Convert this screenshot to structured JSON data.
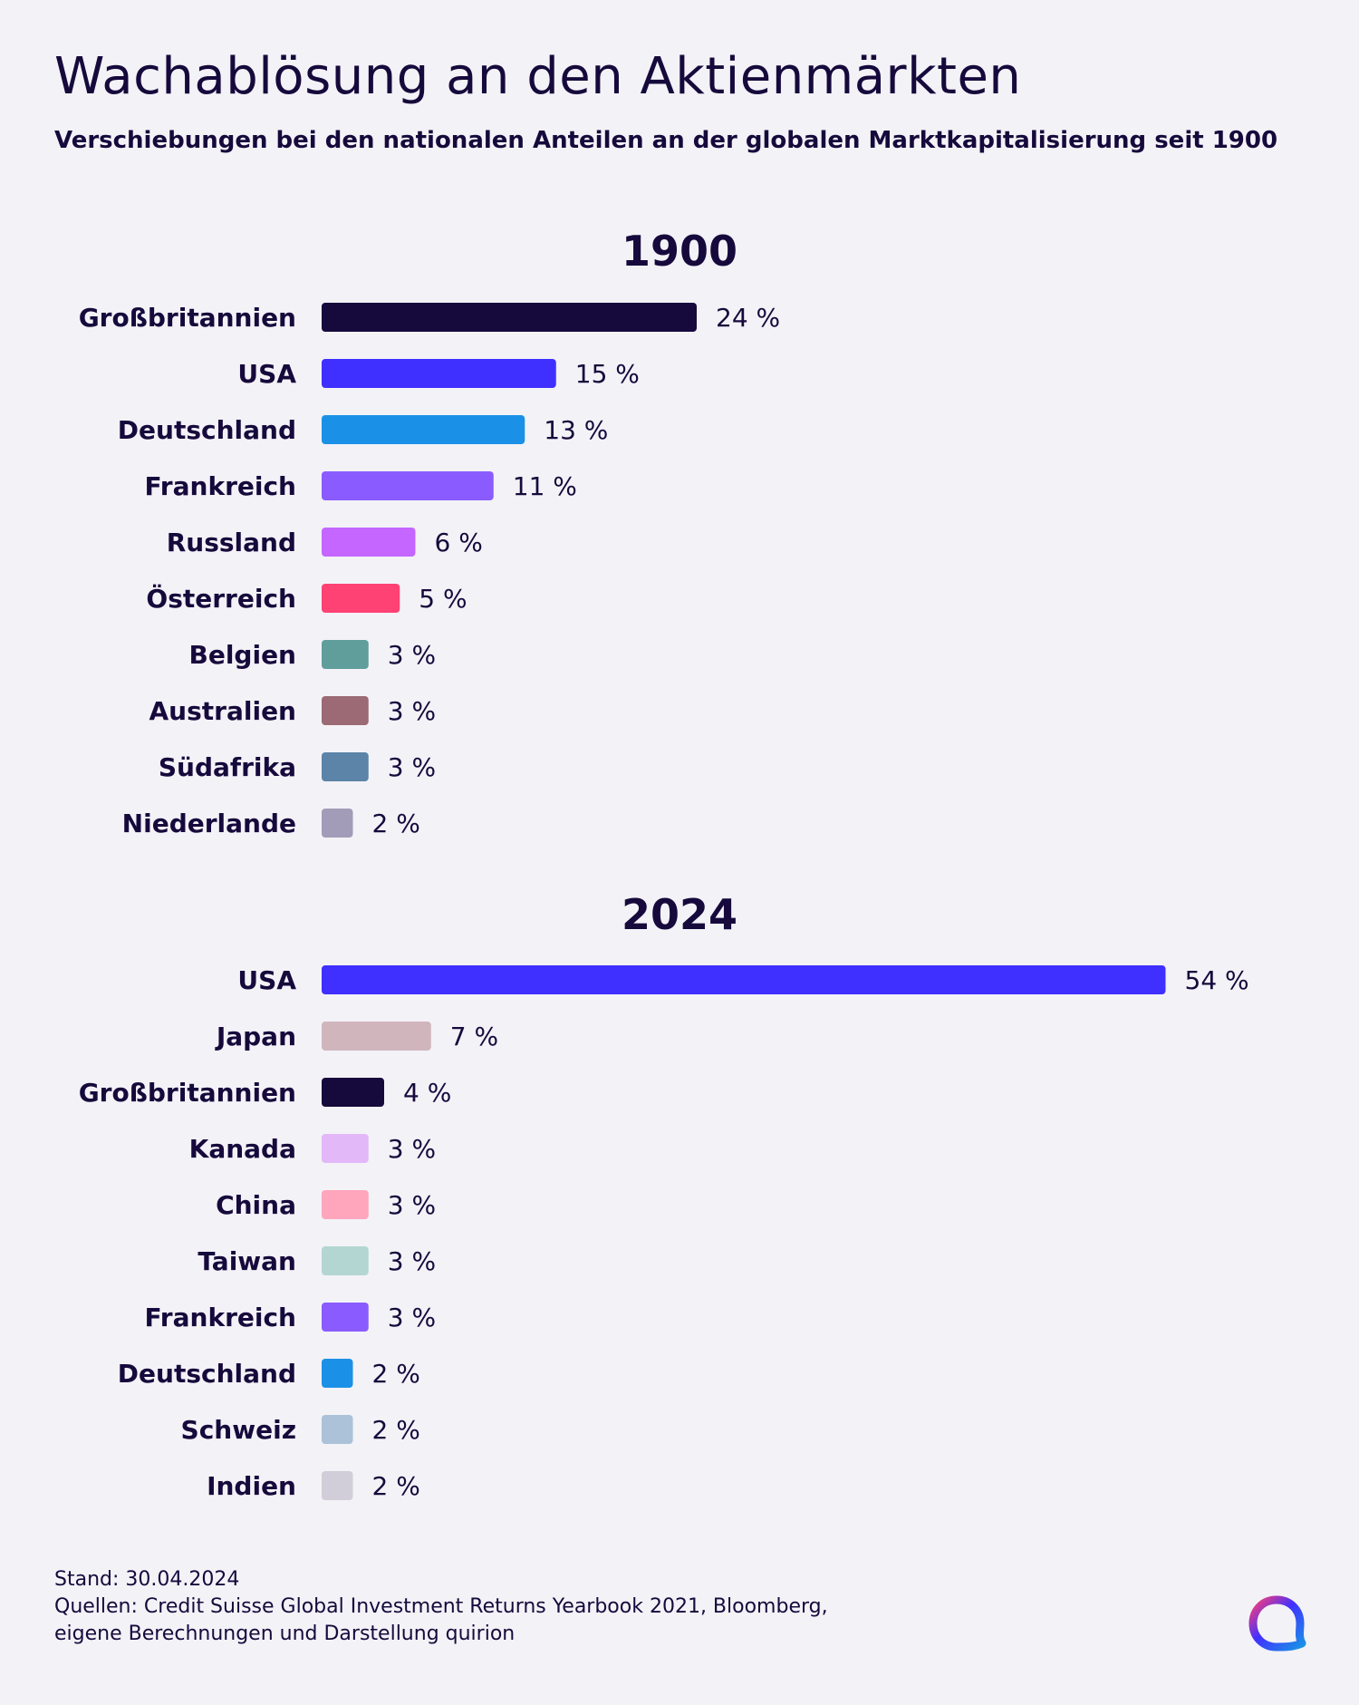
{
  "header": {
    "title": "Wachablösung an den Aktienmärkten",
    "subtitle": "Verschiebungen bei den nationalen Anteilen an der globalen Marktkapitalisierung seit 1900"
  },
  "chart_data": [
    {
      "type": "bar",
      "orientation": "horizontal",
      "title": "1900",
      "unit": "%",
      "categories": [
        "Großbritannien",
        "USA",
        "Deutschland",
        "Frankreich",
        "Russland",
        "Österreich",
        "Belgien",
        "Australien",
        "Südafrika",
        "Niederlande"
      ],
      "values": [
        24,
        15,
        13,
        11,
        6,
        5,
        3,
        3,
        3,
        2
      ],
      "value_labels": [
        "24 %",
        "15 %",
        "13 %",
        "11 %",
        "6 %",
        "5 %",
        "3 %",
        "3 %",
        "3 %",
        "2 %"
      ],
      "colors": [
        "#160a3c",
        "#4030ff",
        "#1a91e6",
        "#8a5cff",
        "#c466ff",
        "#ff4274",
        "#5f9e9b",
        "#9b6a74",
        "#5b84a8",
        "#a39cb8"
      ],
      "grid": false,
      "legend": "none"
    },
    {
      "type": "bar",
      "orientation": "horizontal",
      "title": "2024",
      "unit": "%",
      "categories": [
        "USA",
        "Japan",
        "Großbritannien",
        "Kanada",
        "China",
        "Taiwan",
        "Frankreich",
        "Deutschland",
        "Schweiz",
        "Indien"
      ],
      "values": [
        54,
        7,
        4,
        3,
        3,
        3,
        3,
        2,
        2,
        2
      ],
      "value_labels": [
        "54 %",
        "7 %",
        "4 %",
        "3 %",
        "3 %",
        "3 %",
        "3 %",
        "2 %",
        "2 %",
        "2 %"
      ],
      "colors": [
        "#4030ff",
        "#d0b5bd",
        "#160a3c",
        "#e2b8f8",
        "#ffa5bc",
        "#b3d6d3",
        "#8a5cff",
        "#1a91e6",
        "#abc2d8",
        "#d1cdd9"
      ],
      "grid": false,
      "legend": "none"
    }
  ],
  "footer": {
    "date": "Stand: 30.04.2024",
    "sources_line1": "Quellen: Credit Suisse Global Investment Returns Yearbook 2021, Bloomberg,",
    "sources_line2": "eigene Berechnungen und Darstellung quirion"
  },
  "logo": {
    "icon": "quirion-logo-icon",
    "colors": [
      "#ff3d77",
      "#4030ff",
      "#1a91e6",
      "#c466ff"
    ]
  }
}
